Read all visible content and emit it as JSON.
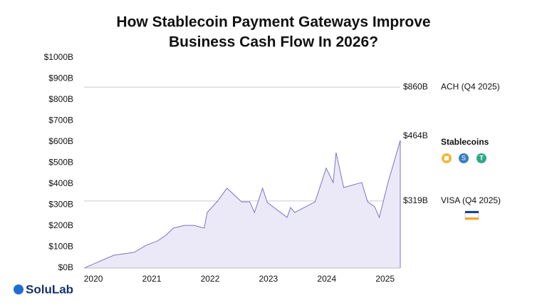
{
  "chart_data": {
    "type": "area",
    "title": [
      "How Stablecoin Payment Gateways Improve",
      "Business Cash Flow In 2026?"
    ],
    "brand": "SoluLab",
    "xlim": [
      2019.84,
      2025.26
    ],
    "xticks": [
      2020,
      2021,
      2022,
      2023,
      2024,
      2025
    ],
    "ylim": [
      0,
      1000
    ],
    "yticks": [
      {
        "value": 0,
        "label": "$0B"
      },
      {
        "value": 100,
        "label": "$100B"
      },
      {
        "value": 200,
        "label": "$200B"
      },
      {
        "value": 300,
        "label": "$300B"
      },
      {
        "value": 400,
        "label": "$400B"
      },
      {
        "value": 500,
        "label": "$500B"
      },
      {
        "value": 600,
        "label": "$600B"
      },
      {
        "value": 700,
        "label": "$700B"
      },
      {
        "value": 800,
        "label": "$800B"
      },
      {
        "value": 900,
        "label": "$900B"
      },
      {
        "value": 1000,
        "label": "$1000B"
      }
    ],
    "series": [
      {
        "name": "Stablecoins",
        "color": "#7b74c6",
        "fill": "#ebe9f8",
        "annotation": "$464B",
        "x": [
          2019.84,
          2020.35,
          2020.7,
          2020.9,
          2021.1,
          2021.24,
          2021.37,
          2021.56,
          2021.73,
          2021.9,
          2021.95,
          2022.13,
          2022.29,
          2022.54,
          2022.68,
          2022.76,
          2022.9,
          2022.98,
          2023.32,
          2023.38,
          2023.45,
          2023.8,
          2023.99,
          2024.11,
          2024.16,
          2024.29,
          2024.6,
          2024.7,
          2024.82,
          2024.9,
          2025.05,
          2025.26
        ],
        "values": [
          0,
          61,
          75,
          108,
          129,
          156,
          190,
          203,
          203,
          190,
          264,
          319,
          380,
          315,
          315,
          264,
          380,
          312,
          241,
          288,
          264,
          315,
          475,
          407,
          549,
          383,
          407,
          315,
          292,
          241,
          407,
          607
        ]
      }
    ],
    "reference_lines": [
      {
        "name": "ACH (Q4 2025)",
        "value": 860,
        "value_label": "$860B",
        "color": "#cccccc"
      },
      {
        "name": "VISA (Q4 2025)",
        "value": 319,
        "value_label": "$319B",
        "color": "#cccccc"
      }
    ]
  }
}
